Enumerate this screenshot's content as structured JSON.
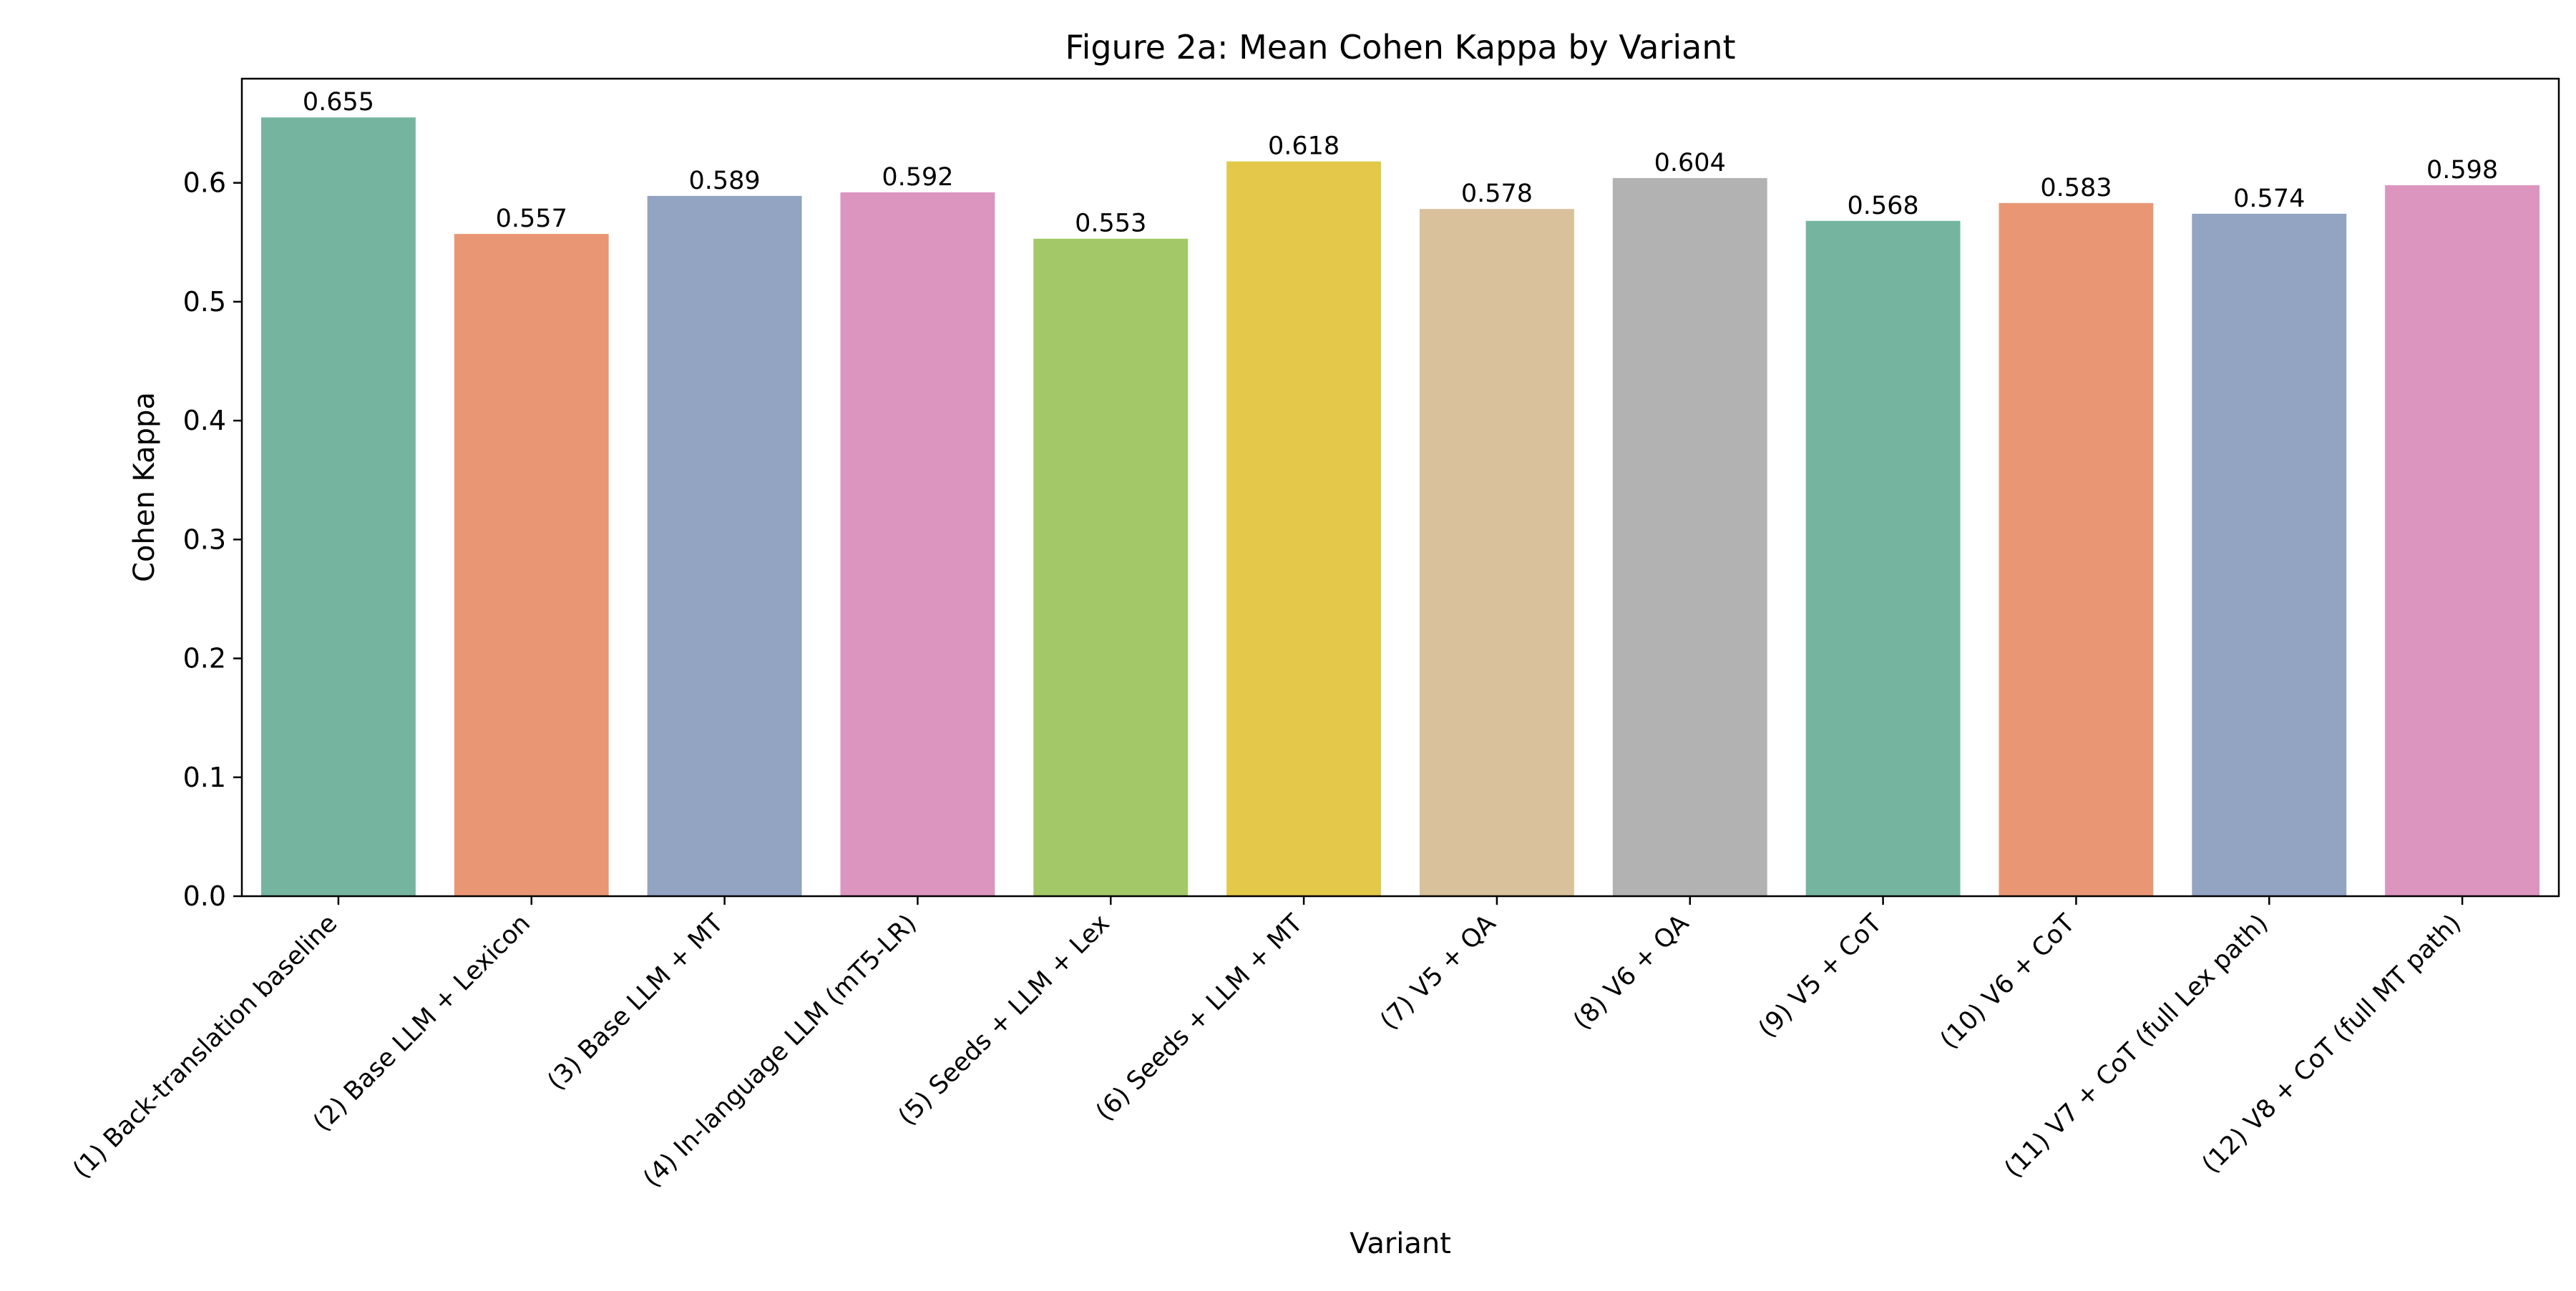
{
  "chart_data": {
    "type": "bar",
    "title": "Figure 2a: Mean Cohen Kappa by Variant",
    "xlabel": "Variant",
    "ylabel": "Cohen Kappa",
    "ylim": [
      0,
      0.6876
    ],
    "yticks": [
      "0.0",
      "0.1",
      "0.2",
      "0.3",
      "0.4",
      "0.5",
      "0.6"
    ],
    "grid": false,
    "legend": "none",
    "categories": [
      "(1) Back-translation baseline",
      "(2) Base LLM + Lexicon",
      "(3) Base LLM + MT",
      "(4) In-language LLM (mT5-LR)",
      "(5) Seeds + LLM + Lex",
      "(6) Seeds + LLM + MT",
      "(7) V5 + QA",
      "(8) V6 + QA",
      "(9) V5 + CoT",
      "(10) V6 + CoT",
      "(11) V7 + CoT (full Lex path)",
      "(12) V8 + CoT (full MT path)"
    ],
    "values": [
      0.655,
      0.557,
      0.589,
      0.592,
      0.553,
      0.618,
      0.578,
      0.604,
      0.568,
      0.583,
      0.574,
      0.598
    ],
    "data_labels": [
      "0.655",
      "0.557",
      "0.589",
      "0.592",
      "0.553",
      "0.618",
      "0.578",
      "0.604",
      "0.568",
      "0.583",
      "0.574",
      "0.598"
    ],
    "colors": [
      "#75b5a0",
      "#e99674",
      "#93a3c2",
      "#dc95bf",
      "#a3c867",
      "#e3c84a",
      "#d9c19c",
      "#b2b2b2",
      "#75b5a0",
      "#e99674",
      "#93a3c2",
      "#dc95bf"
    ]
  }
}
